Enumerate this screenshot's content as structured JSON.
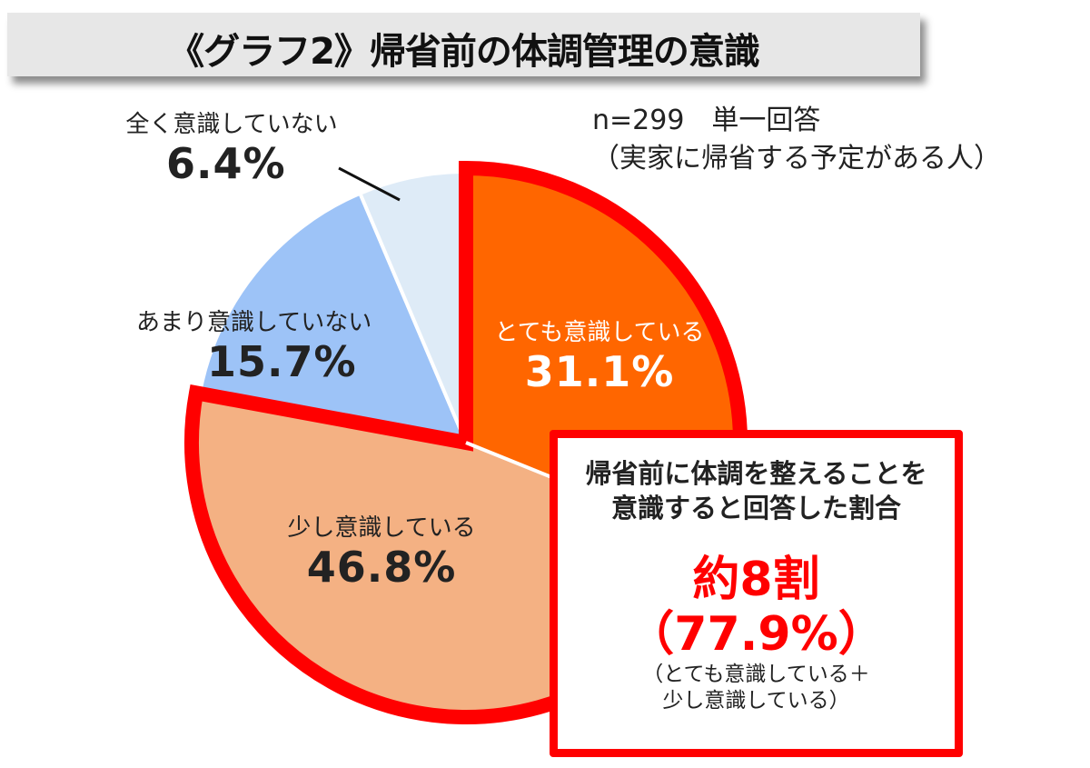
{
  "title": "《グラフ2》帰省前の体調管理の意識",
  "note": {
    "line1": "n=299　単一回答",
    "line2": "（実家に帰省する予定がある人）"
  },
  "chart_data": {
    "type": "pie",
    "title": "《グラフ2》帰省前の体調管理の意識",
    "start": "12 o'clock, clockwise",
    "slices": [
      {
        "label": "とても意識している",
        "value": 31.1,
        "value_label": "31.1%",
        "color": "#FF6600"
      },
      {
        "label": "少し意識している",
        "value": 46.8,
        "value_label": "46.8%",
        "color": "#F4B183"
      },
      {
        "label": "あまり意識していない",
        "value": 15.7,
        "value_label": "15.7%",
        "color": "#9DC3F7"
      },
      {
        "label": "全く意識していない",
        "value": 6.4,
        "value_label": "6.4%",
        "color": "#DEEBF7"
      }
    ],
    "highlight_color": "#FF0000"
  },
  "callout": {
    "heading_line1": "帰省前に体調を整えることを",
    "heading_line2": "意識すると回答した割合",
    "big_line1": "約8割",
    "big_line2": "（77.9%）",
    "sub_line1": "（とても意識している＋",
    "sub_line2": "少し意識している）"
  }
}
